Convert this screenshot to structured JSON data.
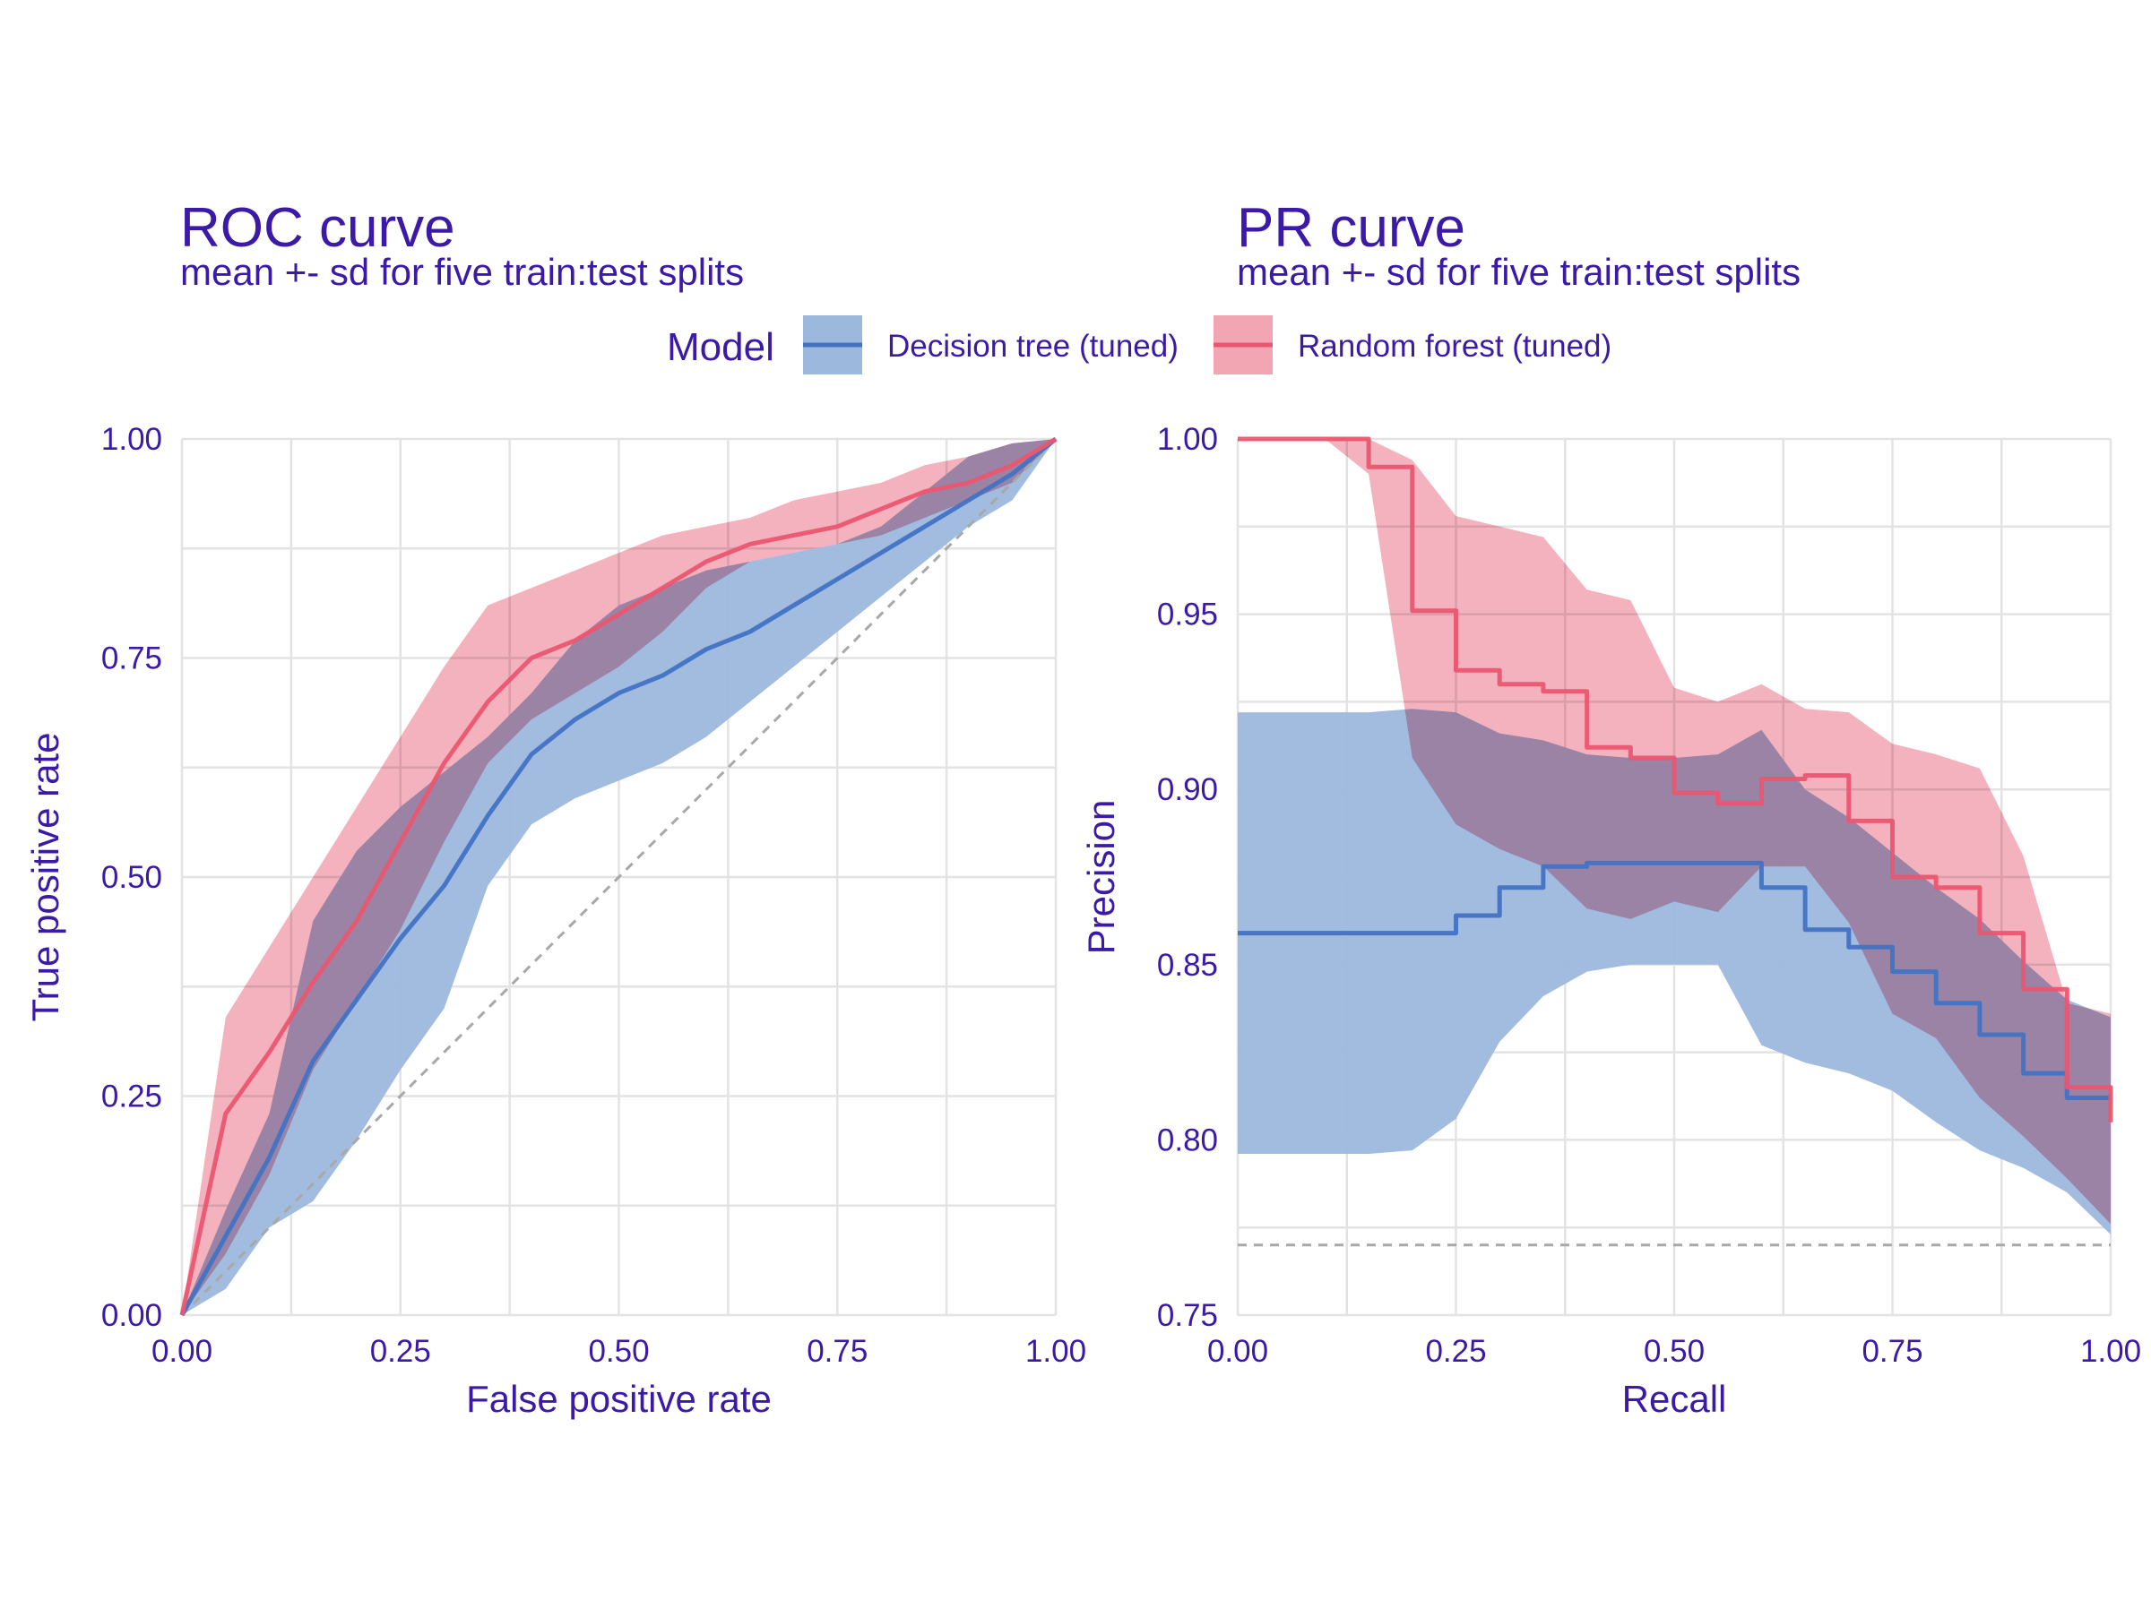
{
  "colors": {
    "text": "#3a1aa6",
    "grid": "#e3e3e3",
    "decision_tree": "#4272c4",
    "decision_tree_band": "#9db8dd",
    "random_forest": "#ea5670",
    "random_forest_band": "#f2a5b3",
    "reference_line": "#a8a8a8"
  },
  "legend": {
    "title": "Model",
    "items": [
      "Decision tree (tuned)",
      "Random forest (tuned)"
    ]
  },
  "chart_data": [
    {
      "type": "line",
      "title": "ROC curve",
      "subtitle": "mean +- sd for five train:test splits",
      "xlabel": "False positive rate",
      "ylabel": "True positive rate",
      "xlim": [
        0,
        1
      ],
      "ylim": [
        0,
        1
      ],
      "xticks": [
        0,
        0.25,
        0.5,
        0.75,
        1
      ],
      "yticks": [
        0,
        0.25,
        0.5,
        0.75,
        1
      ],
      "xtick_labels": [
        "0.00",
        "0.25",
        "0.50",
        "0.75",
        "1.00"
      ],
      "ytick_labels": [
        "0.00",
        "0.25",
        "0.50",
        "0.75",
        "1.00"
      ],
      "grid": true,
      "reference_line": {
        "x": [
          0,
          1
        ],
        "y": [
          0,
          1
        ],
        "style": "dashed"
      },
      "series": [
        {
          "name": "Decision tree (tuned)",
          "x": [
            0,
            0.05,
            0.1,
            0.15,
            0.2,
            0.25,
            0.3,
            0.35,
            0.4,
            0.45,
            0.5,
            0.55,
            0.6,
            0.65,
            0.7,
            0.75,
            0.8,
            0.85,
            0.9,
            0.95,
            1.0
          ],
          "y": [
            0,
            0.09,
            0.18,
            0.29,
            0.36,
            0.43,
            0.49,
            0.57,
            0.64,
            0.68,
            0.71,
            0.73,
            0.76,
            0.78,
            0.81,
            0.84,
            0.87,
            0.9,
            0.93,
            0.96,
            1.0
          ],
          "lower": [
            0,
            0.03,
            0.1,
            0.13,
            0.2,
            0.28,
            0.35,
            0.49,
            0.56,
            0.59,
            0.61,
            0.63,
            0.66,
            0.7,
            0.74,
            0.78,
            0.82,
            0.86,
            0.9,
            0.93,
            1.0
          ],
          "upper": [
            0,
            0.12,
            0.23,
            0.45,
            0.53,
            0.58,
            0.62,
            0.66,
            0.71,
            0.77,
            0.81,
            0.83,
            0.85,
            0.86,
            0.87,
            0.88,
            0.9,
            0.94,
            0.98,
            0.995,
            1.0
          ]
        },
        {
          "name": "Random forest (tuned)",
          "x": [
            0,
            0.05,
            0.1,
            0.15,
            0.2,
            0.25,
            0.3,
            0.35,
            0.4,
            0.45,
            0.5,
            0.55,
            0.6,
            0.65,
            0.7,
            0.75,
            0.8,
            0.85,
            0.9,
            0.95,
            1.0
          ],
          "y": [
            0,
            0.23,
            0.3,
            0.38,
            0.45,
            0.54,
            0.63,
            0.7,
            0.75,
            0.77,
            0.8,
            0.83,
            0.86,
            0.88,
            0.89,
            0.9,
            0.92,
            0.94,
            0.95,
            0.97,
            1.0
          ],
          "lower": [
            0,
            0.07,
            0.16,
            0.28,
            0.36,
            0.44,
            0.54,
            0.63,
            0.68,
            0.71,
            0.74,
            0.78,
            0.83,
            0.86,
            0.87,
            0.88,
            0.89,
            0.91,
            0.93,
            0.95,
            1.0
          ],
          "upper": [
            0,
            0.34,
            0.42,
            0.5,
            0.58,
            0.66,
            0.74,
            0.81,
            0.83,
            0.85,
            0.87,
            0.89,
            0.9,
            0.91,
            0.93,
            0.94,
            0.95,
            0.97,
            0.98,
            0.995,
            1.0
          ]
        }
      ]
    },
    {
      "type": "line",
      "title": "PR curve",
      "subtitle": "mean +- sd for five train:test splits",
      "xlabel": "Recall",
      "ylabel": "Precision",
      "xlim": [
        0,
        1
      ],
      "ylim": [
        0.75,
        1
      ],
      "xticks": [
        0,
        0.25,
        0.5,
        0.75,
        1
      ],
      "yticks": [
        0.75,
        0.8,
        0.85,
        0.9,
        0.95,
        1.0
      ],
      "xtick_labels": [
        "0.00",
        "0.25",
        "0.50",
        "0.75",
        "1.00"
      ],
      "ytick_labels": [
        "0.75",
        "0.80",
        "0.85",
        "0.90",
        "0.95",
        "1.00"
      ],
      "grid": true,
      "reference_line": {
        "y": 0.77,
        "style": "dashed"
      },
      "series": [
        {
          "name": "Decision tree (tuned)",
          "step": true,
          "x": [
            0,
            0.05,
            0.1,
            0.15,
            0.2,
            0.25,
            0.3,
            0.35,
            0.4,
            0.45,
            0.5,
            0.55,
            0.6,
            0.65,
            0.7,
            0.75,
            0.8,
            0.85,
            0.9,
            0.95,
            1.0
          ],
          "y": [
            0.859,
            0.859,
            0.859,
            0.859,
            0.859,
            0.864,
            0.872,
            0.878,
            0.879,
            0.879,
            0.879,
            0.879,
            0.872,
            0.86,
            0.855,
            0.848,
            0.839,
            0.83,
            0.819,
            0.812,
            0.812
          ],
          "lower": [
            0.796,
            0.796,
            0.796,
            0.796,
            0.797,
            0.806,
            0.828,
            0.841,
            0.848,
            0.85,
            0.85,
            0.85,
            0.827,
            0.822,
            0.819,
            0.814,
            0.805,
            0.797,
            0.792,
            0.785,
            0.773
          ],
          "upper": [
            0.922,
            0.922,
            0.922,
            0.922,
            0.923,
            0.922,
            0.916,
            0.914,
            0.91,
            0.909,
            0.909,
            0.91,
            0.917,
            0.9,
            0.892,
            0.882,
            0.872,
            0.863,
            0.851,
            0.84,
            0.835
          ]
        },
        {
          "name": "Random forest (tuned)",
          "step": true,
          "x": [
            0,
            0.05,
            0.1,
            0.15,
            0.2,
            0.25,
            0.3,
            0.35,
            0.4,
            0.45,
            0.5,
            0.55,
            0.6,
            0.65,
            0.7,
            0.75,
            0.8,
            0.85,
            0.9,
            0.95,
            1.0
          ],
          "y": [
            1.0,
            1.0,
            1.0,
            0.992,
            0.951,
            0.934,
            0.93,
            0.928,
            0.912,
            0.909,
            0.899,
            0.896,
            0.903,
            0.904,
            0.891,
            0.875,
            0.872,
            0.859,
            0.843,
            0.815,
            0.805
          ],
          "lower": [
            1.0,
            1.0,
            1.0,
            0.99,
            0.909,
            0.89,
            0.883,
            0.878,
            0.866,
            0.863,
            0.868,
            0.865,
            0.878,
            0.878,
            0.862,
            0.836,
            0.829,
            0.812,
            0.801,
            0.789,
            0.776
          ],
          "upper": [
            1.0,
            1.0,
            1.0,
            1.0,
            0.994,
            0.978,
            0.975,
            0.972,
            0.957,
            0.954,
            0.929,
            0.925,
            0.93,
            0.923,
            0.922,
            0.913,
            0.91,
            0.906,
            0.881,
            0.839,
            0.836
          ]
        }
      ]
    }
  ]
}
